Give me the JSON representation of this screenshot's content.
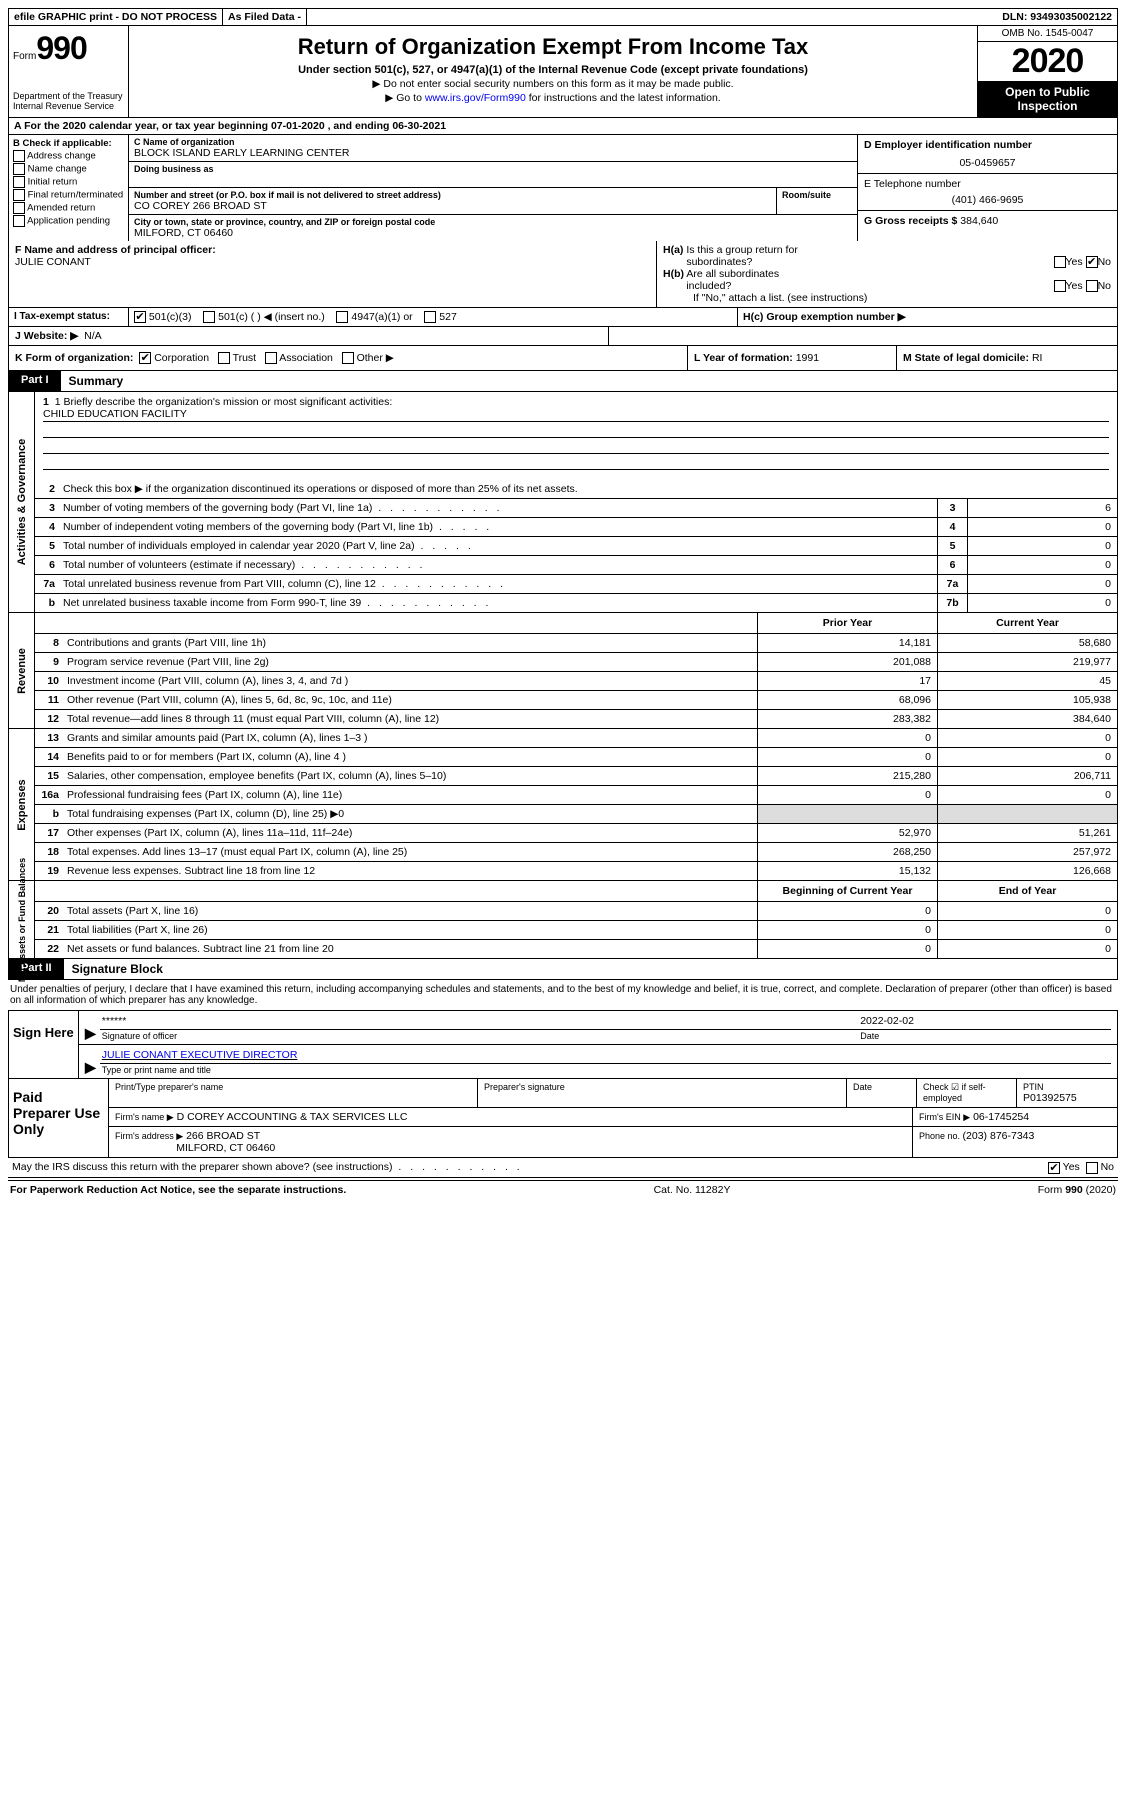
{
  "topbar": {
    "efile": "efile GRAPHIC print - DO NOT PROCESS",
    "asfiled": "As Filed Data -",
    "dln": "DLN: 93493035002122"
  },
  "header": {
    "form_label": "Form",
    "form_number": "990",
    "dept1": "Department of the Treasury",
    "dept2": "Internal Revenue Service",
    "title": "Return of Organization Exempt From Income Tax",
    "subtitle": "Under section 501(c), 527, or 4947(a)(1) of the Internal Revenue Code (except private foundations)",
    "note1": "▶ Do not enter social security numbers on this form as it may be made public.",
    "note2_pre": "▶ Go to ",
    "note2_link": "www.irs.gov/Form990",
    "note2_post": " for instructions and the latest information.",
    "omb": "OMB No. 1545-0047",
    "year": "2020",
    "otp": "Open to Public Inspection"
  },
  "rowA": "A  For the 2020 calendar year, or tax year beginning 07-01-2020   , and ending 06-30-2021",
  "colB": {
    "title": "B Check if applicable:",
    "opts": [
      "Address change",
      "Name change",
      "Initial return",
      "Final return/terminated",
      "Amended return",
      "Application pending"
    ]
  },
  "boxC": {
    "lbl": "C Name of organization",
    "val": "BLOCK ISLAND EARLY LEARNING CENTER",
    "dba_lbl": "Doing business as"
  },
  "boxAddr": {
    "lbl": "Number and street (or P.O. box if mail is not delivered to street address)",
    "room": "Room/suite",
    "val": "CO COREY 266 BROAD ST"
  },
  "boxCity": {
    "lbl": "City or town, state or province, country, and ZIP or foreign postal code",
    "val": "MILFORD, CT  06460"
  },
  "boxD": {
    "lbl": "D Employer identification number",
    "val": "05-0459657"
  },
  "boxE": {
    "lbl": "E Telephone number",
    "val": "(401) 466-9695"
  },
  "boxG": {
    "lbl": "G Gross receipts $ ",
    "val": "384,640"
  },
  "boxF": {
    "lbl": "F  Name and address of principal officer:",
    "val": "JULIE CONANT"
  },
  "boxH": {
    "a_lbl": "H(a)  Is this a group return for subordinates?",
    "b_lbl": "H(b)  Are all subordinates included?",
    "b_note": "If \"No,\" attach a list. (see instructions)",
    "c_lbl": "H(c)  Group exemption number ▶",
    "yes": "Yes",
    "no": "No"
  },
  "rowI": {
    "lbl": "I  Tax-exempt status:",
    "o1": "501(c)(3)",
    "o2": "501(c) (   ) ◀ (insert no.)",
    "o3": "4947(a)(1) or",
    "o4": "527"
  },
  "rowJ": {
    "lbl": "J  Website: ▶",
    "val": "N/A"
  },
  "rowK": {
    "lbl": "K Form of organization:",
    "o1": "Corporation",
    "o2": "Trust",
    "o3": "Association",
    "o4": "Other ▶"
  },
  "rowL": {
    "lbl": "L Year of formation: ",
    "val": "1991"
  },
  "rowM": {
    "lbl": "M State of legal domicile: ",
    "val": "RI"
  },
  "part1": {
    "tab": "Part I",
    "title": "Summary"
  },
  "mission": {
    "lbl": "1  Briefly describe the organization's mission or most significant activities:",
    "val": "CHILD EDUCATION FACILITY"
  },
  "gov": {
    "side": "Activities & Governance",
    "l2": "Check this box ▶        if the organization discontinued its operations or disposed of more than 25% of its net assets.",
    "l3": "Number of voting members of the governing body (Part VI, line 1a)",
    "l4": "Number of independent voting members of the governing body (Part VI, line 1b)",
    "l5": "Total number of individuals employed in calendar year 2020 (Part V, line 2a)",
    "l6": "Total number of volunteers (estimate if necessary)",
    "l7a": "Total unrelated business revenue from Part VIII, column (C), line 12",
    "l7b": "Net unrelated business taxable income from Form 990-T, line 39",
    "v3": "6",
    "v4": "0",
    "v5": "0",
    "v6": "0",
    "v7a": "0",
    "v7b": "0"
  },
  "rev": {
    "side": "Revenue",
    "hdr1": "Prior Year",
    "hdr2": "Current Year",
    "rows": [
      {
        "n": "8",
        "t": "Contributions and grants (Part VIII, line 1h)",
        "a": "14,181",
        "b": "58,680"
      },
      {
        "n": "9",
        "t": "Program service revenue (Part VIII, line 2g)",
        "a": "201,088",
        "b": "219,977"
      },
      {
        "n": "10",
        "t": "Investment income (Part VIII, column (A), lines 3, 4, and 7d )",
        "a": "17",
        "b": "45"
      },
      {
        "n": "11",
        "t": "Other revenue (Part VIII, column (A), lines 5, 6d, 8c, 9c, 10c, and 11e)",
        "a": "68,096",
        "b": "105,938"
      },
      {
        "n": "12",
        "t": "Total revenue—add lines 8 through 11 (must equal Part VIII, column (A), line 12)",
        "a": "283,382",
        "b": "384,640"
      }
    ]
  },
  "exp": {
    "side": "Expenses",
    "rows": [
      {
        "n": "13",
        "t": "Grants and similar amounts paid (Part IX, column (A), lines 1–3 )",
        "a": "0",
        "b": "0"
      },
      {
        "n": "14",
        "t": "Benefits paid to or for members (Part IX, column (A), line 4 )",
        "a": "0",
        "b": "0"
      },
      {
        "n": "15",
        "t": "Salaries, other compensation, employee benefits (Part IX, column (A), lines 5–10)",
        "a": "215,280",
        "b": "206,711"
      },
      {
        "n": "16a",
        "t": "Professional fundraising fees (Part IX, column (A), line 11e)",
        "a": "0",
        "b": "0"
      },
      {
        "n": "b",
        "t": "Total fundraising expenses (Part IX, column (D), line 25)  ▶0",
        "a": "",
        "b": "",
        "gray": true
      },
      {
        "n": "17",
        "t": "Other expenses (Part IX, column (A), lines 11a–11d, 11f–24e)",
        "a": "52,970",
        "b": "51,261"
      },
      {
        "n": "18",
        "t": "Total expenses. Add lines 13–17 (must equal Part IX, column (A), line 25)",
        "a": "268,250",
        "b": "257,972"
      },
      {
        "n": "19",
        "t": "Revenue less expenses. Subtract line 18 from line 12",
        "a": "15,132",
        "b": "126,668"
      }
    ]
  },
  "net": {
    "side": "Net Assets or Fund Balances",
    "hdr1": "Beginning of Current Year",
    "hdr2": "End of Year",
    "rows": [
      {
        "n": "20",
        "t": "Total assets (Part X, line 16)",
        "a": "0",
        "b": "0"
      },
      {
        "n": "21",
        "t": "Total liabilities (Part X, line 26)",
        "a": "0",
        "b": "0"
      },
      {
        "n": "22",
        "t": "Net assets or fund balances. Subtract line 21 from line 20",
        "a": "0",
        "b": "0"
      }
    ]
  },
  "part2": {
    "tab": "Part II",
    "title": "Signature Block"
  },
  "sig_intro": "Under penalties of perjury, I declare that I have examined this return, including accompanying schedules and statements, and to the best of my knowledge and belief, it is true, correct, and complete. Declaration of preparer (other than officer) is based on all information of which preparer has any knowledge.",
  "sign": {
    "label": "Sign Here",
    "stars": "******",
    "sig_lbl": "Signature of officer",
    "date": "2022-02-02",
    "date_lbl": "Date",
    "name": "JULIE CONANT  EXECUTIVE DIRECTOR",
    "name_lbl": "Type or print name and title"
  },
  "prep": {
    "label": "Paid Preparer Use Only",
    "h1": "Print/Type preparer's name",
    "h2": "Preparer's signature",
    "h3": "Date",
    "h4": "Check ☑ if self-employed",
    "h5": "PTIN",
    "ptin": "P01392575",
    "firm_lbl": "Firm's name   ▶",
    "firm": "D COREY ACCOUNTING & TAX SERVICES LLC",
    "ein_lbl": "Firm's EIN ▶",
    "ein": "06-1745254",
    "addr_lbl": "Firm's address ▶",
    "addr1": "266 BROAD ST",
    "addr2": "MILFORD, CT  06460",
    "phone_lbl": "Phone no. ",
    "phone": "(203) 876-7343"
  },
  "irs_q": "May the IRS discuss this return with the preparer shown above? (see instructions)",
  "foot": {
    "l": "For Paperwork Reduction Act Notice, see the separate instructions.",
    "m": "Cat. No. 11282Y",
    "r": "Form 990 (2020)"
  }
}
